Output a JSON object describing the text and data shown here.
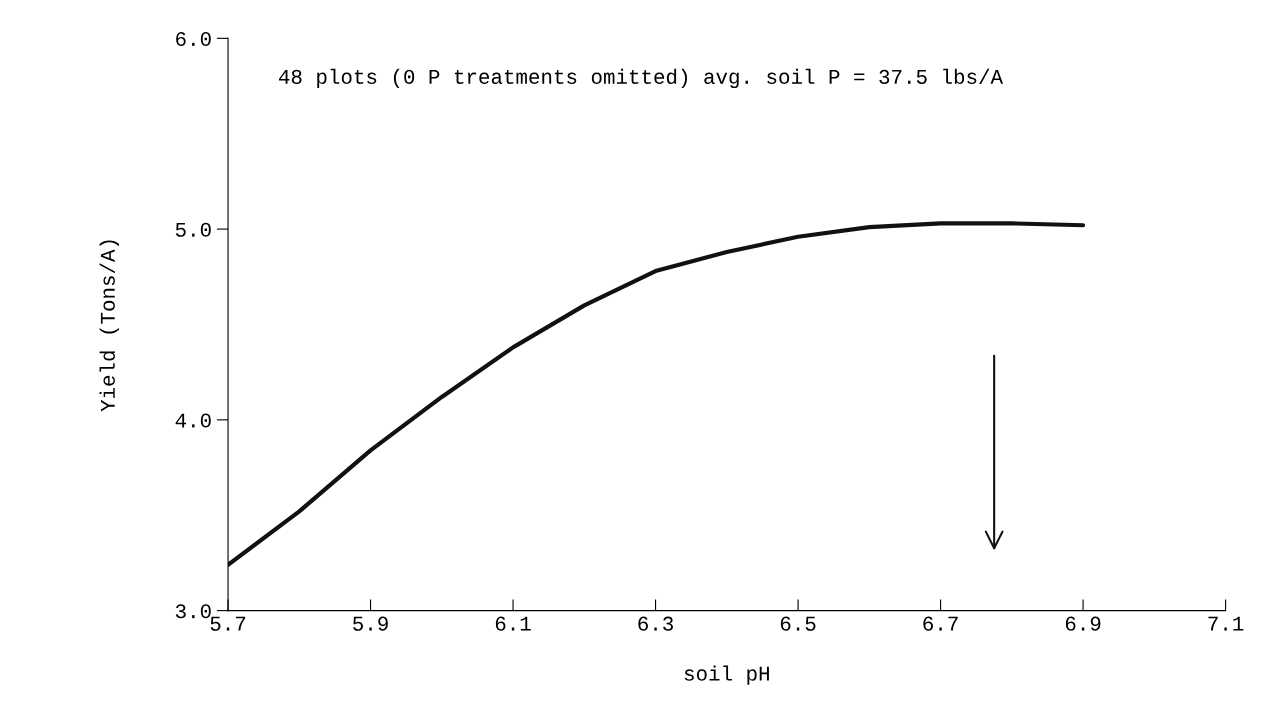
{
  "chart_data": {
    "type": "line",
    "xlabel": "soil pH",
    "ylabel": "Yield (Tons/A)",
    "annotations": [
      "48 plots (0 P treatments omitted) avg. soil P = 37.5 lbs/A"
    ],
    "x": [
      5.7,
      5.8,
      5.9,
      6.0,
      6.1,
      6.2,
      6.3,
      6.4,
      6.5,
      6.6,
      6.7,
      6.8,
      6.9
    ],
    "series": [
      {
        "color": "#111111",
        "values": [
          3.24,
          3.52,
          3.84,
          4.12,
          4.38,
          4.6,
          4.78,
          4.88,
          4.96,
          5.01,
          5.03,
          5.03,
          5.02
        ]
      }
    ],
    "xlim": [
      5.7,
      7.1
    ],
    "xticks": [
      5.7,
      5.9,
      6.1,
      6.3,
      6.5,
      6.7,
      6.9,
      7.1
    ],
    "ylim": [
      3.0,
      6.0
    ],
    "yticks": [
      {
        "value": 3.0,
        "label": "3.0"
      },
      {
        "value": 4.0,
        "label": "4.0"
      },
      {
        "value": 5.0,
        "label": "5.0"
      },
      {
        "value": 6.0,
        "label": "6.0"
      }
    ],
    "grid": false,
    "legend": false,
    "marker": "none",
    "line_style": "solid"
  }
}
